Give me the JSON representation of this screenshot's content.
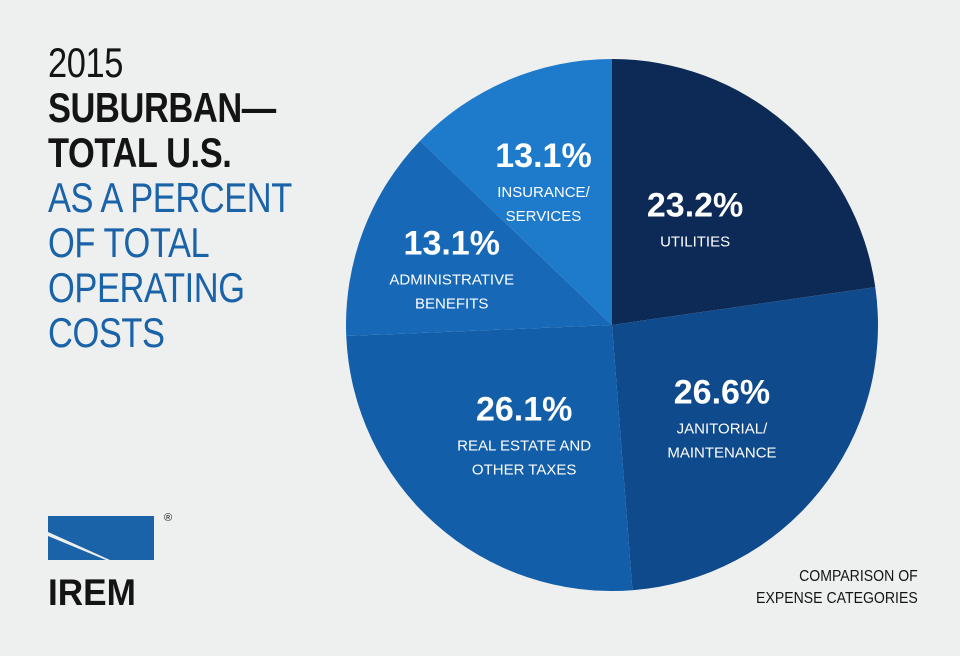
{
  "title": {
    "year": "2015",
    "line1": "SUBURBAN—",
    "line2": "TOTAL U.S.",
    "line3": "AS A PERCENT",
    "line4": "OF TOTAL",
    "line5": "OPERATING",
    "line6": "COSTS"
  },
  "brand": {
    "name": "IREM",
    "registered": "®"
  },
  "footnote": {
    "line1": "COMPARISON OF",
    "line2": "EXPENSE CATEGORIES"
  },
  "chart_data": {
    "type": "pie",
    "slices": [
      {
        "label_lines": [
          "UTILITIES"
        ],
        "value": 23.2,
        "display": "23.2%",
        "color": "#0c2a55"
      },
      {
        "label_lines": [
          "JANITORIAL/",
          "MAINTENANCE"
        ],
        "value": 26.6,
        "display": "26.6%",
        "color": "#0f4a8c"
      },
      {
        "label_lines": [
          "REAL ESTATE AND",
          "OTHER TAXES"
        ],
        "value": 26.1,
        "display": "26.1%",
        "color": "#125ea9"
      },
      {
        "label_lines": [
          "ADMINISTRATIVE",
          "BENEFITS"
        ],
        "value": 13.1,
        "display": "13.1%",
        "color": "#1769b7"
      },
      {
        "label_lines": [
          "INSURANCE/",
          "SERVICES"
        ],
        "value": 13.1,
        "display": "13.1%",
        "color": "#1e7acb"
      }
    ],
    "start": "12 o'clock",
    "direction": "clockwise"
  }
}
